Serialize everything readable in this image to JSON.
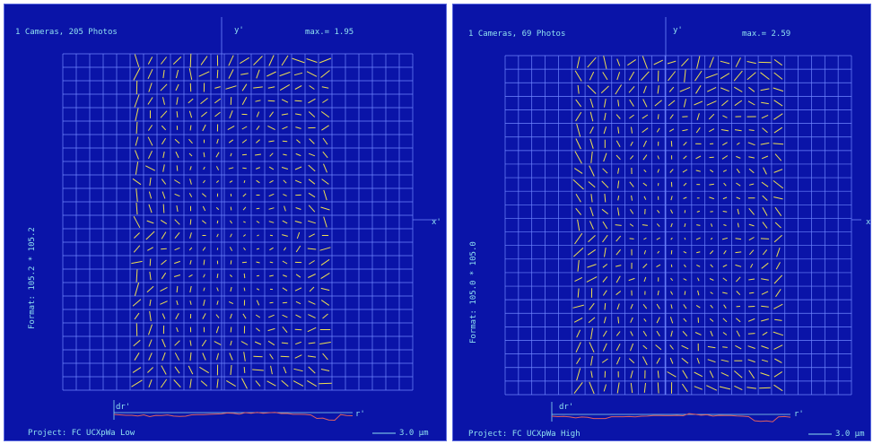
{
  "panels": [
    {
      "id": "left",
      "header": "1 Cameras, 205 Photos",
      "max_label": "max.= 1.95",
      "y_axis": "y'",
      "x_axis": "x'",
      "format_label": "Format: 105.2 * 105.2",
      "project": "Project: FC UCXpWa Low",
      "dr_label": "dr'",
      "r_label": "r'",
      "scale_label": "3.0 µm",
      "seed": 11
    },
    {
      "id": "right",
      "header": "1 Cameras, 69 Photos",
      "max_label": "max.= 2.59",
      "y_axis": "y'",
      "x_axis": "x",
      "format_label": "Format: 105.0 * 105.0",
      "project": "Project: FC UCXpWa High",
      "dr_label": "dr'",
      "r_label": "r'",
      "scale_label": "3.0 µm",
      "seed": 29
    }
  ],
  "colors": {
    "background": "#0a14a8",
    "grid": "#6f86ff",
    "text": "#8fe0f0",
    "vector": "#f0e050",
    "curve": "#e06060"
  }
}
